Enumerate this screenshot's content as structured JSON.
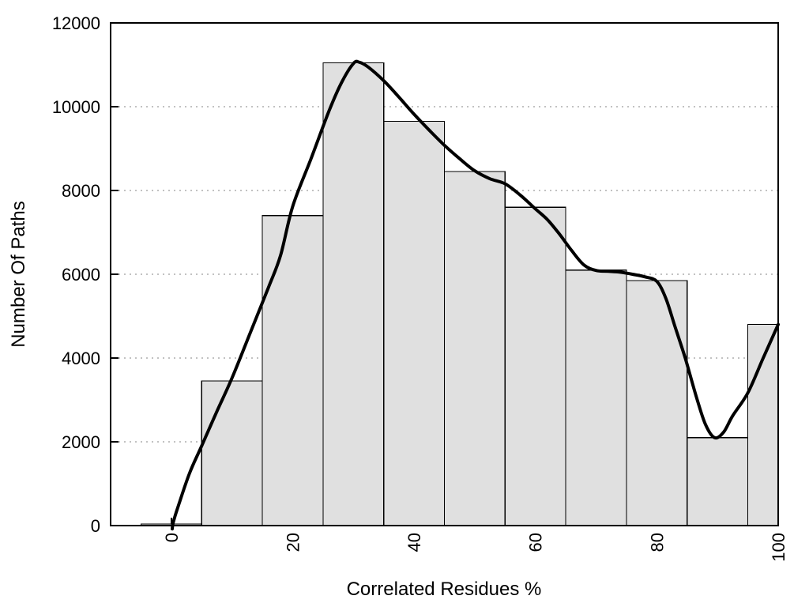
{
  "page": {
    "background": "#ffffff"
  },
  "chart_data": {
    "type": "bar",
    "title": "",
    "xlabel": "Correlated Residues %",
    "ylabel": "Number Of Paths",
    "xlim": [
      -10,
      100
    ],
    "ylim": [
      0,
      12000
    ],
    "x_ticks": [
      0,
      20,
      40,
      60,
      80,
      100
    ],
    "y_ticks": [
      0,
      2000,
      4000,
      6000,
      8000,
      10000,
      12000
    ],
    "x_tick_rotation": -90,
    "grid": "horizontal-dotted",
    "legend": "none",
    "bars": {
      "bin_width": 10,
      "centers": [
        0,
        10,
        20,
        30,
        40,
        50,
        60,
        70,
        80,
        90,
        100
      ],
      "values": [
        40,
        3450,
        7400,
        11050,
        9650,
        8450,
        7600,
        6100,
        5850,
        2100,
        4800
      ],
      "note": "last bin clipped at x = 100"
    },
    "curve": {
      "name": "smoothed-trend-line",
      "points": [
        [
          0.15,
          -80
        ],
        [
          0.3,
          60
        ],
        [
          1,
          400
        ],
        [
          3,
          1250
        ],
        [
          5,
          1900
        ],
        [
          7.5,
          2720
        ],
        [
          10,
          3520
        ],
        [
          13,
          4600
        ],
        [
          16,
          5680
        ],
        [
          18,
          6450
        ],
        [
          20,
          7620
        ],
        [
          23,
          8750
        ],
        [
          26,
          9900
        ],
        [
          28,
          10560
        ],
        [
          30,
          11030
        ],
        [
          31,
          11060
        ],
        [
          32.5,
          10940
        ],
        [
          35,
          10620
        ],
        [
          37.5,
          10230
        ],
        [
          40,
          9820
        ],
        [
          42.5,
          9440
        ],
        [
          45,
          9080
        ],
        [
          47.5,
          8760
        ],
        [
          50,
          8470
        ],
        [
          52.5,
          8280
        ],
        [
          55,
          8160
        ],
        [
          57.5,
          7890
        ],
        [
          60,
          7560
        ],
        [
          62,
          7300
        ],
        [
          64,
          6950
        ],
        [
          66,
          6560
        ],
        [
          68,
          6220
        ],
        [
          70,
          6090
        ],
        [
          72,
          6070
        ],
        [
          74,
          6050
        ],
        [
          76,
          6000
        ],
        [
          78,
          5940
        ],
        [
          80,
          5830
        ],
        [
          81.5,
          5420
        ],
        [
          83,
          4750
        ],
        [
          84.7,
          3990
        ],
        [
          86.5,
          3080
        ],
        [
          88,
          2420
        ],
        [
          89.5,
          2100
        ],
        [
          91,
          2230
        ],
        [
          92.5,
          2620
        ],
        [
          95,
          3170
        ],
        [
          97.5,
          3990
        ],
        [
          100,
          4800
        ]
      ]
    },
    "colors": {
      "bar_fill": "#e0e0e0",
      "bar_stroke": "#000000",
      "curve": "#000000",
      "grid": "#c2c2c2",
      "frame": "#000000",
      "text": "#000000",
      "background": "#ffffff"
    }
  }
}
